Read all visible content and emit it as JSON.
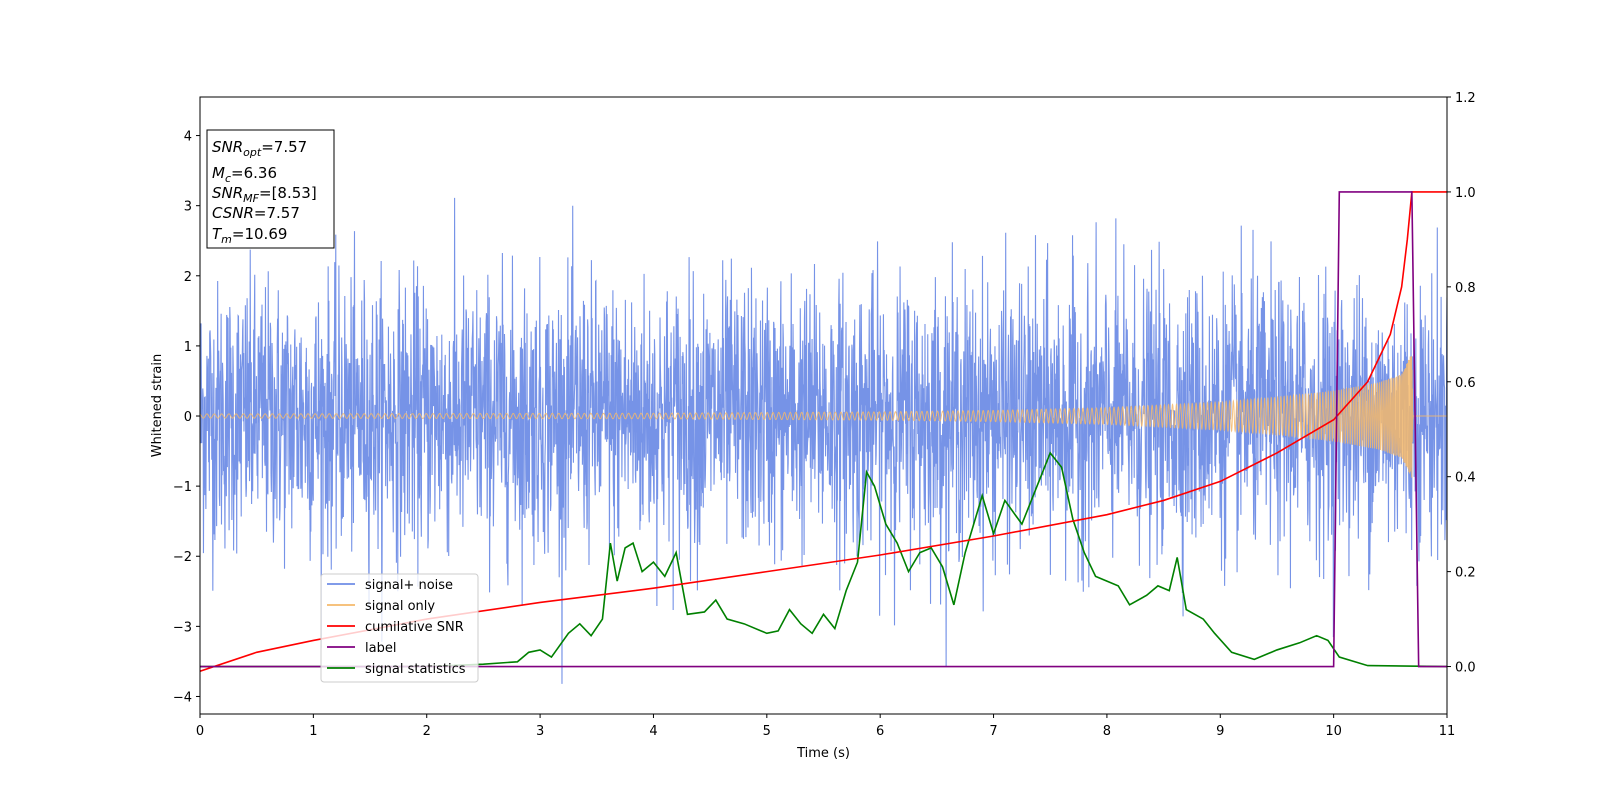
{
  "chart_data": {
    "type": "line",
    "title": "",
    "xlabel": "Time (s)",
    "ylabel": "Whitened strain",
    "xlim": [
      0,
      11
    ],
    "ylim_left": [
      -4.25,
      4.55
    ],
    "ylim_right": [
      -0.1,
      1.2
    ],
    "x_ticks": [
      "0",
      "1",
      "2",
      "3",
      "4",
      "5",
      "6",
      "7",
      "8",
      "9",
      "10",
      "11"
    ],
    "y_ticks_left": [
      "−4",
      "−3",
      "−2",
      "−1",
      "0",
      "1",
      "2",
      "3",
      "4"
    ],
    "y_ticks_right": [
      "0.0",
      "0.2",
      "0.4",
      "0.6",
      "0.8",
      "1.0",
      "1.2"
    ],
    "grid": false,
    "legend_position": "lower-left",
    "annotation": {
      "lines": [
        {
          "base": "SNR",
          "sub": "opt",
          "value": "=7.57"
        },
        {
          "base": "M",
          "sub": "c",
          "value": "=6.36"
        },
        {
          "base": "SNR",
          "sub": "MF",
          "value": "=[8.53]"
        },
        {
          "base": "CSNR",
          "sub": "",
          "value": "=7.57"
        },
        {
          "base": "T",
          "sub": "m",
          "value": "=10.69"
        }
      ]
    },
    "series": [
      {
        "name": "signal+ noise",
        "axis": "left",
        "color": "#6f8de6",
        "description": "whitened noise-dominated strain, roughly ±1.6 sigma band with spikes to about ±3.5",
        "envelope": {
          "typical_abs": 1.5,
          "max_abs": 4.15
        }
      },
      {
        "name": "signal only",
        "axis": "left",
        "color": "#f5b96b",
        "description": "chirp waveform with amplitude growing toward merger",
        "amplitude_points": [
          [
            0,
            0.03
          ],
          [
            2,
            0.035
          ],
          [
            4,
            0.04
          ],
          [
            6,
            0.06
          ],
          [
            7,
            0.08
          ],
          [
            8,
            0.12
          ],
          [
            9,
            0.2
          ],
          [
            9.5,
            0.27
          ],
          [
            10,
            0.36
          ],
          [
            10.4,
            0.48
          ],
          [
            10.6,
            0.6
          ],
          [
            10.69,
            0.9
          ],
          [
            10.7,
            0
          ]
        ]
      },
      {
        "name": "cumilative SNR",
        "axis": "right",
        "color": "#ff0000",
        "points": [
          [
            0,
            -0.01
          ],
          [
            0.5,
            0.03
          ],
          [
            1,
            0.055
          ],
          [
            2,
            0.1
          ],
          [
            3,
            0.135
          ],
          [
            4,
            0.165
          ],
          [
            5,
            0.2
          ],
          [
            6,
            0.235
          ],
          [
            7,
            0.275
          ],
          [
            8,
            0.32
          ],
          [
            8.5,
            0.35
          ],
          [
            9,
            0.39
          ],
          [
            9.5,
            0.45
          ],
          [
            10,
            0.52
          ],
          [
            10.3,
            0.6
          ],
          [
            10.5,
            0.7
          ],
          [
            10.6,
            0.8
          ],
          [
            10.65,
            0.9
          ],
          [
            10.69,
            1.0
          ],
          [
            11,
            1.0
          ]
        ]
      },
      {
        "name": "label",
        "axis": "right",
        "color": "#800080",
        "points": [
          [
            0,
            0.0
          ],
          [
            10.0,
            0.0
          ],
          [
            10.05,
            1.0
          ],
          [
            10.69,
            1.0
          ],
          [
            10.75,
            0.0
          ],
          [
            11,
            0.0
          ]
        ]
      },
      {
        "name": "signal statistics",
        "axis": "right",
        "color": "#008000",
        "points": [
          [
            0,
            0.0
          ],
          [
            2,
            0.0
          ],
          [
            2.5,
            0.005
          ],
          [
            2.8,
            0.01
          ],
          [
            2.9,
            0.03
          ],
          [
            3.0,
            0.035
          ],
          [
            3.1,
            0.02
          ],
          [
            3.25,
            0.07
          ],
          [
            3.35,
            0.09
          ],
          [
            3.45,
            0.065
          ],
          [
            3.55,
            0.1
          ],
          [
            3.62,
            0.26
          ],
          [
            3.68,
            0.18
          ],
          [
            3.75,
            0.25
          ],
          [
            3.82,
            0.26
          ],
          [
            3.9,
            0.2
          ],
          [
            4.0,
            0.22
          ],
          [
            4.1,
            0.19
          ],
          [
            4.2,
            0.24
          ],
          [
            4.3,
            0.11
          ],
          [
            4.45,
            0.115
          ],
          [
            4.55,
            0.14
          ],
          [
            4.65,
            0.1
          ],
          [
            4.8,
            0.09
          ],
          [
            5.0,
            0.07
          ],
          [
            5.1,
            0.075
          ],
          [
            5.2,
            0.12
          ],
          [
            5.3,
            0.09
          ],
          [
            5.4,
            0.07
          ],
          [
            5.5,
            0.11
          ],
          [
            5.6,
            0.08
          ],
          [
            5.7,
            0.16
          ],
          [
            5.8,
            0.22
          ],
          [
            5.88,
            0.41
          ],
          [
            5.95,
            0.38
          ],
          [
            6.05,
            0.3
          ],
          [
            6.15,
            0.26
          ],
          [
            6.25,
            0.2
          ],
          [
            6.35,
            0.24
          ],
          [
            6.45,
            0.25
          ],
          [
            6.55,
            0.21
          ],
          [
            6.65,
            0.13
          ],
          [
            6.75,
            0.24
          ],
          [
            6.9,
            0.36
          ],
          [
            7.0,
            0.28
          ],
          [
            7.1,
            0.35
          ],
          [
            7.25,
            0.3
          ],
          [
            7.4,
            0.39
          ],
          [
            7.5,
            0.45
          ],
          [
            7.6,
            0.42
          ],
          [
            7.7,
            0.31
          ],
          [
            7.8,
            0.24
          ],
          [
            7.9,
            0.19
          ],
          [
            8.0,
            0.18
          ],
          [
            8.1,
            0.17
          ],
          [
            8.2,
            0.13
          ],
          [
            8.35,
            0.15
          ],
          [
            8.45,
            0.17
          ],
          [
            8.55,
            0.16
          ],
          [
            8.62,
            0.23
          ],
          [
            8.7,
            0.12
          ],
          [
            8.85,
            0.1
          ],
          [
            8.95,
            0.07
          ],
          [
            9.1,
            0.03
          ],
          [
            9.3,
            0.015
          ],
          [
            9.5,
            0.035
          ],
          [
            9.7,
            0.05
          ],
          [
            9.85,
            0.065
          ],
          [
            9.95,
            0.055
          ],
          [
            10.05,
            0.02
          ],
          [
            10.3,
            0.002
          ],
          [
            11,
            0.0
          ]
        ]
      }
    ]
  }
}
